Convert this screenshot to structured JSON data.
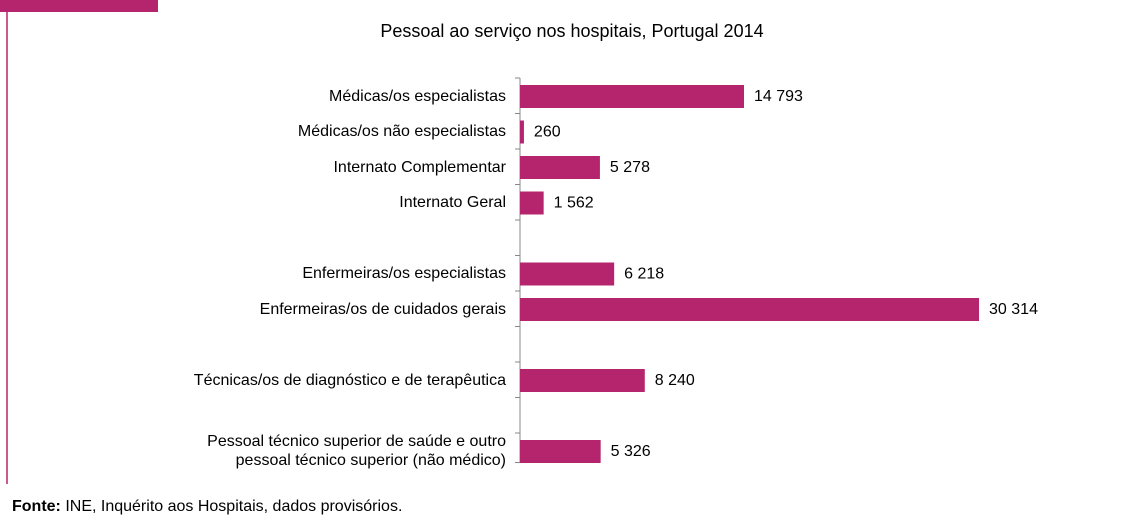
{
  "chart_data": {
    "type": "barh",
    "title": "Pessoal ao serviço nos hospitais, Portugal 2014",
    "categories": [
      "Médicas/os especialistas",
      "Médicas/os não especialistas",
      "Internato Complementar",
      "Internato Geral",
      null,
      "Enfermeiras/os especialistas",
      "Enfermeiras/os de cuidados gerais",
      null,
      "Técnicas/os de diagnóstico e de terapêutica",
      null,
      "Pessoal técnico superior de saúde e outro\npessoal técnico superior (não médico)"
    ],
    "values": [
      14793,
      260,
      5278,
      1562,
      null,
      6218,
      30314,
      null,
      8240,
      null,
      5326
    ],
    "value_labels": [
      "14 793",
      "260",
      "5 278",
      "1 562",
      null,
      "6 218",
      "30 314",
      null,
      "8 240",
      null,
      "5 326"
    ],
    "color": "#b5256e",
    "xlim": [
      0,
      35000
    ],
    "source_label": "Fonte:",
    "source": "INE, Inquérito aos Hospitais, dados provisórios."
  }
}
